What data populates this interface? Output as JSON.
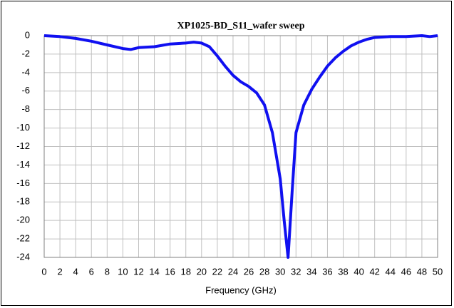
{
  "chart_data": {
    "type": "line",
    "title": "XP1025-BD_S11_wafer sweep",
    "x_label": "Frequency (GHz)",
    "series": [
      {
        "name": "S11",
        "color": "#1010f0",
        "x": [
          0,
          2,
          4,
          6,
          8,
          10,
          11,
          12,
          14,
          16,
          18,
          19,
          20,
          21,
          22,
          23,
          24,
          25,
          26,
          27,
          28,
          29,
          30,
          30.5,
          31,
          31.5,
          32,
          33,
          34,
          35,
          36,
          37,
          38,
          39,
          40,
          41,
          42,
          44,
          46,
          48,
          49,
          50
        ],
        "values": [
          0,
          -0.1,
          -0.3,
          -0.6,
          -1.0,
          -1.4,
          -1.5,
          -1.3,
          -1.2,
          -0.9,
          -0.8,
          -0.7,
          -0.8,
          -1.2,
          -2.2,
          -3.3,
          -4.3,
          -5.0,
          -5.5,
          -6.2,
          -7.5,
          -10.5,
          -15.5,
          -20,
          -24,
          -17,
          -10.5,
          -7.5,
          -5.8,
          -4.5,
          -3.3,
          -2.4,
          -1.7,
          -1.1,
          -0.7,
          -0.4,
          -0.2,
          -0.1,
          -0.1,
          0,
          -0.1,
          0
        ]
      }
    ],
    "xlim": [
      0,
      50
    ],
    "xticks": [
      0,
      2,
      4,
      6,
      8,
      10,
      12,
      14,
      16,
      18,
      20,
      22,
      24,
      26,
      28,
      30,
      32,
      34,
      36,
      38,
      40,
      42,
      44,
      46,
      48,
      50
    ],
    "ylim": [
      -24,
      0
    ],
    "yticks": [
      0,
      -2,
      -4,
      -6,
      -8,
      -10,
      -12,
      -14,
      -16,
      -18,
      -20,
      -22,
      -24
    ],
    "grid": true
  }
}
